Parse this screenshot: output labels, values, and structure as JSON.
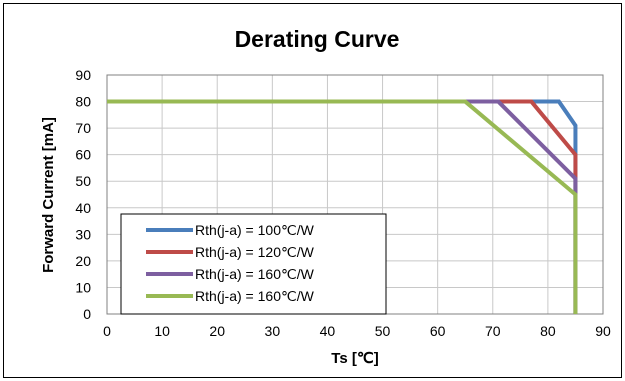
{
  "chart_data": {
    "type": "line",
    "title": "Derating Curve",
    "xlabel": "Ts [℃]",
    "ylabel": "Forward Current [mA]",
    "xlim": [
      0,
      90
    ],
    "ylim": [
      0,
      90
    ],
    "x_ticks": [
      "0",
      "10",
      "20",
      "30",
      "40",
      "50",
      "60",
      "70",
      "80",
      "90"
    ],
    "y_ticks": [
      "0",
      "10",
      "20",
      "30",
      "40",
      "50",
      "60",
      "70",
      "80",
      "90"
    ],
    "grid": true,
    "legend_position": "lower-left",
    "series": [
      {
        "name": "Rth(j-a) = 100℃/W",
        "color": "#4a7ebb",
        "points": [
          [
            0,
            80
          ],
          [
            82,
            80
          ],
          [
            85,
            71
          ],
          [
            85,
            0
          ]
        ]
      },
      {
        "name": "Rth(j-a) = 120℃/W",
        "color": "#be4b48",
        "points": [
          [
            0,
            80
          ],
          [
            77,
            80
          ],
          [
            85,
            60
          ],
          [
            85,
            0
          ]
        ]
      },
      {
        "name": "Rth(j-a) = 160℃/W",
        "color": "#7d5fa0",
        "points": [
          [
            0,
            80
          ],
          [
            71,
            80
          ],
          [
            85,
            51
          ],
          [
            85,
            0
          ]
        ]
      },
      {
        "name": "Rth(j-a) = 160℃/W",
        "color": "#98b954",
        "points": [
          [
            0,
            80
          ],
          [
            65,
            80
          ],
          [
            85,
            45
          ],
          [
            85,
            0
          ]
        ]
      }
    ]
  }
}
